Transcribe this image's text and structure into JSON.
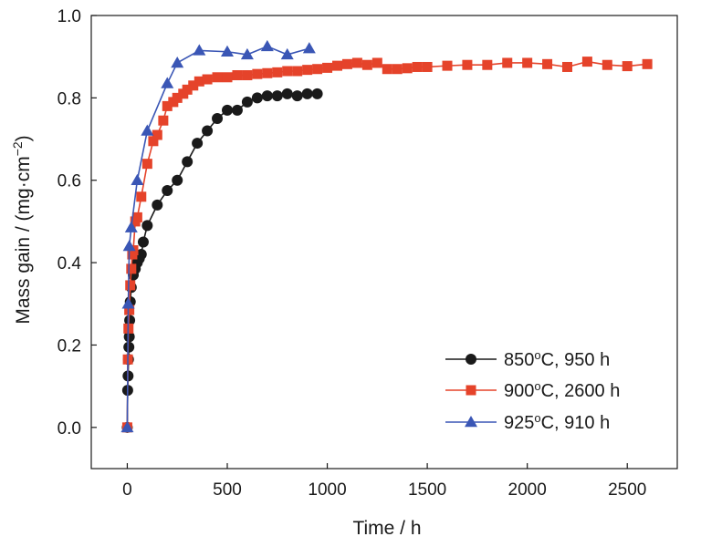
{
  "chart_data": {
    "type": "line",
    "xlabel": "Time / h",
    "ylabel": "Mass gain / (mg·cm−2)",
    "ylabel_parts": {
      "main": "Mass gain / (mg·cm",
      "sup": "−2",
      "close": ")"
    },
    "xlim": [
      -180,
      2750
    ],
    "ylim": [
      -0.1,
      1.0
    ],
    "x_ticks": [
      0,
      500,
      1000,
      1500,
      2000,
      2500
    ],
    "y_ticks": [
      0.0,
      0.2,
      0.4,
      0.6,
      0.8,
      1.0
    ],
    "x_tick_labels": [
      "0",
      "500",
      "1000",
      "1500",
      "2000",
      "2500"
    ],
    "y_tick_labels": [
      "0.0",
      "0.2",
      "0.4",
      "0.6",
      "0.8",
      "1.0"
    ],
    "legend_position": "bottom-right",
    "series": [
      {
        "name": "850°C, 950 h",
        "name_parts": {
          "num": "850",
          "sup": "o",
          "rest": "C, 950 h"
        },
        "color": "#1a1a1a",
        "marker": "circle",
        "x": [
          0,
          2,
          4,
          6,
          8,
          10,
          12,
          15,
          20,
          30,
          40,
          50,
          60,
          70,
          80,
          100,
          150,
          200,
          250,
          300,
          350,
          400,
          450,
          500,
          550,
          600,
          650,
          700,
          750,
          800,
          850,
          900,
          950
        ],
        "y": [
          0.0,
          0.09,
          0.125,
          0.165,
          0.195,
          0.22,
          0.26,
          0.305,
          0.34,
          0.37,
          0.385,
          0.4,
          0.41,
          0.42,
          0.45,
          0.49,
          0.54,
          0.575,
          0.6,
          0.645,
          0.69,
          0.72,
          0.75,
          0.77,
          0.77,
          0.79,
          0.8,
          0.805,
          0.805,
          0.81,
          0.805,
          0.81,
          0.81
        ]
      },
      {
        "name": "900°C, 2600 h",
        "name_parts": {
          "num": "900",
          "sup": "o",
          "rest": "C, 2600 h"
        },
        "color": "#e5432a",
        "marker": "square",
        "x": [
          0,
          3,
          6,
          10,
          15,
          20,
          25,
          30,
          40,
          50,
          70,
          100,
          130,
          150,
          180,
          200,
          230,
          250,
          280,
          300,
          330,
          360,
          400,
          450,
          500,
          550,
          600,
          650,
          700,
          750,
          800,
          850,
          900,
          950,
          1000,
          1050,
          1100,
          1150,
          1200,
          1250,
          1300,
          1350,
          1400,
          1450,
          1500,
          1600,
          1700,
          1800,
          1900,
          2000,
          2100,
          2200,
          2300,
          2400,
          2500,
          2600
        ],
        "y": [
          0.0,
          0.165,
          0.24,
          0.285,
          0.345,
          0.385,
          0.42,
          0.43,
          0.5,
          0.51,
          0.56,
          0.64,
          0.695,
          0.71,
          0.745,
          0.78,
          0.79,
          0.8,
          0.81,
          0.82,
          0.83,
          0.84,
          0.845,
          0.85,
          0.85,
          0.855,
          0.855,
          0.858,
          0.86,
          0.862,
          0.865,
          0.865,
          0.868,
          0.87,
          0.873,
          0.878,
          0.882,
          0.885,
          0.88,
          0.885,
          0.87,
          0.87,
          0.872,
          0.875,
          0.875,
          0.878,
          0.88,
          0.88,
          0.885,
          0.885,
          0.882,
          0.875,
          0.888,
          0.88,
          0.877,
          0.882
        ]
      },
      {
        "name": "925°C, 910 h",
        "name_parts": {
          "num": "925",
          "sup": "o",
          "rest": "C, 910 h"
        },
        "color": "#3a56b5",
        "marker": "triangle",
        "x": [
          0,
          5,
          10,
          20,
          50,
          100,
          200,
          250,
          360,
          500,
          600,
          700,
          800,
          910
        ],
        "y": [
          0.0,
          0.3,
          0.44,
          0.485,
          0.6,
          0.72,
          0.835,
          0.885,
          0.915,
          0.912,
          0.905,
          0.925,
          0.905,
          0.92
        ]
      }
    ]
  }
}
